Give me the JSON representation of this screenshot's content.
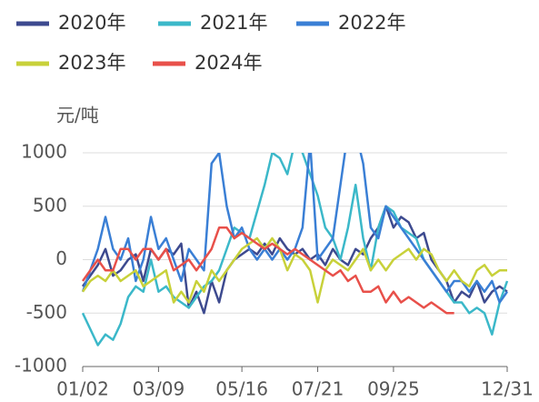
{
  "chart_data": {
    "type": "line",
    "y_label": "元/吨",
    "categories": [
      "01/02",
      null,
      null,
      null,
      null,
      null,
      null,
      null,
      null,
      null,
      "03/09",
      null,
      null,
      null,
      null,
      null,
      null,
      null,
      null,
      null,
      null,
      "05/16",
      null,
      null,
      null,
      null,
      null,
      null,
      null,
      null,
      null,
      "07/21",
      null,
      null,
      null,
      null,
      null,
      null,
      null,
      null,
      null,
      "09/25",
      null,
      null,
      null,
      null,
      null,
      null,
      null,
      null,
      null,
      null,
      null,
      null,
      null,
      null,
      "12/31"
    ],
    "series": [
      {
        "name": "2020年",
        "color": "#3d4a8f",
        "values": [
          -250,
          -150,
          -50,
          100,
          -150,
          -100,
          0,
          50,
          -200,
          100,
          0,
          100,
          50,
          150,
          -450,
          -300,
          -500,
          -200,
          -400,
          -100,
          0,
          50,
          100,
          50,
          150,
          50,
          200,
          100,
          50,
          100,
          0,
          50,
          -50,
          100,
          0,
          -50,
          100,
          50,
          200,
          300,
          500,
          300,
          400,
          350,
          200,
          250,
          0,
          -100,
          -200,
          -400,
          -300,
          -350,
          -200,
          -400,
          -300,
          -250,
          -300
        ]
      },
      {
        "name": "2021年",
        "color": "#3bb8c9",
        "values": [
          -500,
          -650,
          -800,
          -700,
          -750,
          -600,
          -350,
          -250,
          -300,
          0,
          -300,
          -250,
          -350,
          -400,
          -450,
          -350,
          -250,
          -200,
          -100,
          100,
          300,
          250,
          200,
          450,
          700,
          1000,
          950,
          800,
          1100,
          1000,
          800,
          600,
          300,
          200,
          0,
          300,
          700,
          200,
          -100,
          300,
          500,
          450,
          300,
          250,
          200,
          0,
          -100,
          -200,
          -300,
          -400,
          -400,
          -500,
          -450,
          -500,
          -700,
          -400,
          -200
        ]
      },
      {
        "name": "2022年",
        "color": "#3a7fd5",
        "values": [
          -300,
          -100,
          100,
          400,
          100,
          0,
          200,
          -200,
          0,
          400,
          100,
          200,
          0,
          -200,
          100,
          0,
          -100,
          900,
          1000,
          500,
          200,
          300,
          100,
          0,
          100,
          0,
          100,
          0,
          100,
          300,
          1100,
          0,
          100,
          200,
          700,
          1200,
          1200,
          900,
          300,
          200,
          500,
          400,
          300,
          200,
          100,
          0,
          -100,
          -200,
          -300,
          -200,
          -200,
          -300,
          -200,
          -300,
          -200,
          -400,
          -300
        ]
      },
      {
        "name": "2023年",
        "color": "#c8d13a",
        "values": [
          -300,
          -200,
          -150,
          -200,
          -100,
          -200,
          -150,
          -100,
          -250,
          -200,
          -150,
          -100,
          -400,
          -300,
          -400,
          -200,
          -300,
          -100,
          -200,
          -100,
          0,
          100,
          150,
          200,
          100,
          200,
          100,
          -100,
          50,
          0,
          -100,
          -400,
          -100,
          0,
          -50,
          -100,
          0,
          100,
          -100,
          0,
          -100,
          0,
          50,
          100,
          0,
          100,
          50,
          -100,
          -200,
          -100,
          -200,
          -250,
          -100,
          -50,
          -150,
          -100,
          -100
        ]
      },
      {
        "name": "2024年",
        "color": "#e8504a",
        "values": [
          -200,
          -100,
          0,
          -100,
          -100,
          100,
          100,
          0,
          100,
          100,
          0,
          100,
          -100,
          -50,
          0,
          -100,
          0,
          100,
          300,
          300,
          200,
          250,
          200,
          150,
          100,
          150,
          100,
          50,
          100,
          50,
          0,
          -50,
          -100,
          -150,
          -100,
          -200,
          -150,
          -300,
          -300,
          -250,
          -400,
          -300,
          -400,
          -350,
          -400,
          -450,
          -400,
          -450,
          -500,
          -500,
          null,
          null,
          null,
          null,
          null,
          null,
          null
        ]
      }
    ],
    "ylim": [
      -1000,
      1000
    ],
    "yticks": [
      -1000,
      -500,
      0,
      500,
      1000
    ],
    "grid": true
  }
}
